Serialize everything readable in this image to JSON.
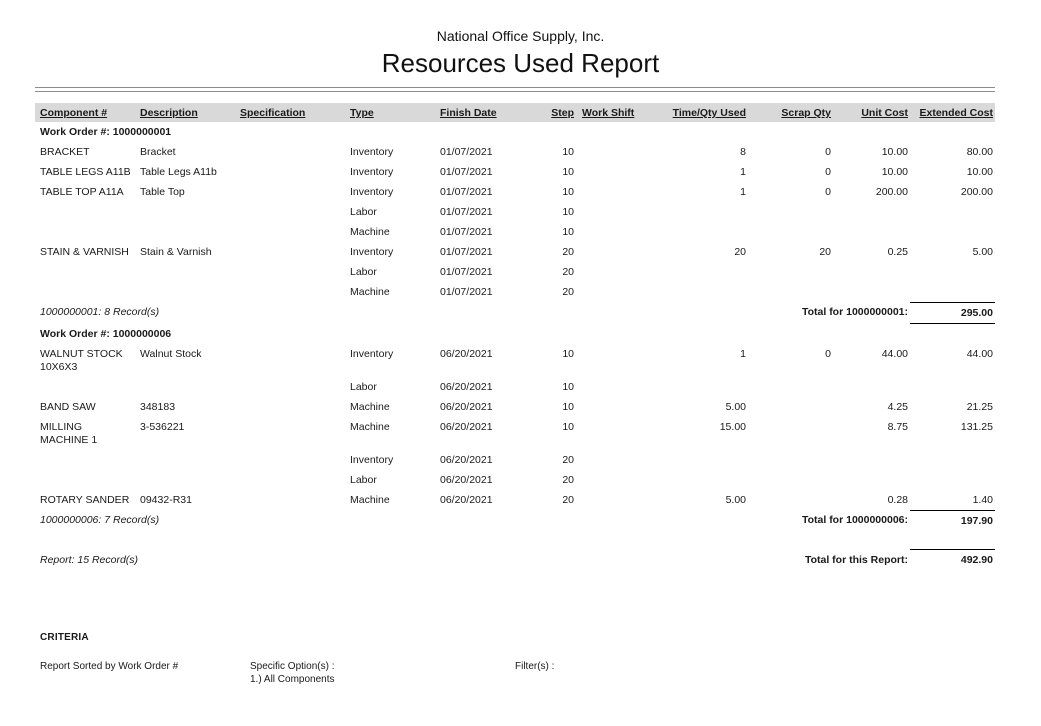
{
  "colors": {
    "header_band": "#d9d9d9",
    "rule_gray": "#8c8c8c",
    "total_rule": "#000000",
    "text": "#1a1a1a"
  },
  "report": {
    "company": "National Office Supply, Inc.",
    "title": "Resources Used Report",
    "columns": [
      {
        "key": "component",
        "label": "Component #"
      },
      {
        "key": "description",
        "label": "Description"
      },
      {
        "key": "specification",
        "label": "Specification"
      },
      {
        "key": "type",
        "label": "Type"
      },
      {
        "key": "finish-date",
        "label": "Finish Date"
      },
      {
        "key": "step",
        "label": "Step"
      },
      {
        "key": "work-shift",
        "label": "Work Shift"
      },
      {
        "key": "time-qty-used",
        "label": "Time/Qty Used"
      },
      {
        "key": "scrap-qty",
        "label": "Scrap Qty"
      },
      {
        "key": "unit-cost",
        "label": "Unit Cost"
      },
      {
        "key": "extended-cost",
        "label": "Extended Cost"
      }
    ],
    "groups": [
      {
        "header": "Work Order #: 1000000001",
        "rows": [
          [
            "BRACKET",
            "Bracket",
            "",
            "Inventory",
            "01/07/2021",
            "10",
            "",
            "8",
            "0",
            "10.00",
            "80.00"
          ],
          [
            "TABLE LEGS A11B",
            "Table Legs A11b",
            "",
            "Inventory",
            "01/07/2021",
            "10",
            "",
            "1",
            "0",
            "10.00",
            "10.00"
          ],
          [
            "TABLE TOP A11A",
            "Table Top",
            "",
            "Inventory",
            "01/07/2021",
            "10",
            "",
            "1",
            "0",
            "200.00",
            "200.00"
          ],
          [
            "",
            "",
            "",
            "Labor",
            "01/07/2021",
            "10",
            "",
            "",
            "",
            "",
            ""
          ],
          [
            "",
            "",
            "",
            "Machine",
            "01/07/2021",
            "10",
            "",
            "",
            "",
            "",
            ""
          ],
          [
            "STAIN & VARNISH",
            "Stain & Varnish",
            "",
            "Inventory",
            "01/07/2021",
            "20",
            "",
            "20",
            "20",
            "0.25",
            "5.00"
          ],
          [
            "",
            "",
            "",
            "Labor",
            "01/07/2021",
            "20",
            "",
            "",
            "",
            "",
            ""
          ],
          [
            "",
            "",
            "",
            "Machine",
            "01/07/2021",
            "20",
            "",
            "",
            "",
            "",
            ""
          ]
        ],
        "footer": {
          "records": "1000000001: 8 Record(s)",
          "total_label": "Total for 1000000001:",
          "total_value": "295.00",
          "underline_below_total": true
        }
      },
      {
        "header": "Work Order #: 1000000006",
        "rows": [
          [
            "WALNUT STOCK\n10X6X3",
            "Walnut Stock",
            "",
            "Inventory",
            "06/20/2021",
            "10",
            "",
            "1",
            "0",
            "44.00",
            "44.00"
          ],
          [
            "",
            "",
            "",
            "Labor",
            "06/20/2021",
            "10",
            "",
            "",
            "",
            "",
            ""
          ],
          [
            "BAND SAW",
            "348183",
            "",
            "Machine",
            "06/20/2021",
            "10",
            "",
            "5.00",
            "",
            "4.25",
            "21.25"
          ],
          [
            "MILLING\nMACHINE 1",
            "3-536221",
            "",
            "Machine",
            "06/20/2021",
            "10",
            "",
            "15.00",
            "",
            "8.75",
            "131.25"
          ],
          [
            "",
            "",
            "",
            "Inventory",
            "06/20/2021",
            "20",
            "",
            "",
            "",
            "",
            ""
          ],
          [
            "",
            "",
            "",
            "Labor",
            "06/20/2021",
            "20",
            "",
            "",
            "",
            "",
            ""
          ],
          [
            "ROTARY SANDER",
            "09432-R31",
            "",
            "Machine",
            "06/20/2021",
            "20",
            "",
            "5.00",
            "",
            "0.28",
            "1.40"
          ]
        ],
        "footer": {
          "records": "1000000006: 7 Record(s)",
          "total_label": "Total for 1000000006:",
          "total_value": "197.90",
          "underline_below_total": false
        }
      }
    ],
    "report_footer": {
      "records": "Report: 15 Record(s)",
      "total_label": "Total for this Report:",
      "total_value": "492.90"
    }
  },
  "criteria": {
    "heading": "CRITERIA",
    "sorted_by": "Report Sorted by Work Order #",
    "specific_options_label": "Specific Option(s) :",
    "specific_options_value": "1.) All Components",
    "filters_label": "Filter(s) :"
  }
}
